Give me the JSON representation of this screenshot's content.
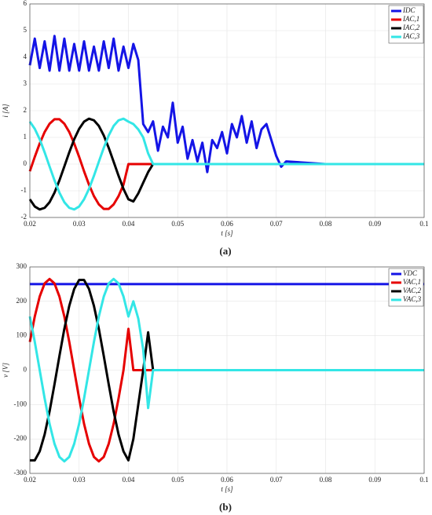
{
  "chart_data": [
    {
      "type": "line",
      "caption": "(a)",
      "xlabel": "t  [s]",
      "ylabel": "i  [A]",
      "x": [
        0.02,
        0.021,
        0.022,
        0.023,
        0.024,
        0.025,
        0.026,
        0.027,
        0.028,
        0.029,
        0.03,
        0.031,
        0.032,
        0.033,
        0.034,
        0.035,
        0.036,
        0.037,
        0.038,
        0.039,
        0.04,
        0.041,
        0.042,
        0.043,
        0.044,
        0.045,
        0.046,
        0.047,
        0.048,
        0.049,
        0.05,
        0.051,
        0.052,
        0.053,
        0.054,
        0.055,
        0.056,
        0.057,
        0.058,
        0.059,
        0.06,
        0.061,
        0.062,
        0.063,
        0.064,
        0.065,
        0.066,
        0.067,
        0.068,
        0.069,
        0.07,
        0.071,
        0.072,
        0.08,
        0.09,
        0.1
      ],
      "series": [
        {
          "name": "IDC",
          "color": "#1414e6",
          "values": [
            3.7,
            4.7,
            3.6,
            4.6,
            3.5,
            4.8,
            3.5,
            4.7,
            3.5,
            4.5,
            3.5,
            4.6,
            3.5,
            4.4,
            3.5,
            4.6,
            3.6,
            4.7,
            3.5,
            4.4,
            3.6,
            4.5,
            3.9,
            1.5,
            1.2,
            1.6,
            0.5,
            1.4,
            1.0,
            2.3,
            0.8,
            1.4,
            0.2,
            0.9,
            0.1,
            0.8,
            -0.3,
            0.9,
            0.6,
            1.2,
            0.4,
            1.5,
            1.0,
            1.8,
            0.8,
            1.6,
            0.6,
            1.3,
            1.5,
            0.9,
            0.3,
            -0.1,
            0.1,
            0,
            0,
            0
          ]
        },
        {
          "name": "IAC,1",
          "color": "#e60000",
          "values": [
            -0.27,
            0.27,
            0.77,
            1.2,
            1.51,
            1.68,
            1.68,
            1.51,
            1.2,
            0.77,
            0.27,
            -0.27,
            -0.77,
            -1.2,
            -1.51,
            -1.68,
            -1.68,
            -1.51,
            -1.2,
            -0.77,
            0,
            0,
            0,
            0,
            0,
            0,
            0,
            0,
            0,
            0,
            0,
            0,
            0,
            0,
            0,
            0,
            0,
            0,
            0,
            0,
            0,
            0,
            0,
            0,
            0,
            0,
            0,
            0,
            0,
            0,
            0,
            0,
            0,
            0,
            0,
            0
          ]
        },
        {
          "name": "IAC,2",
          "color": "#000000",
          "values": [
            -1.32,
            -1.59,
            -1.7,
            -1.64,
            -1.43,
            -1.07,
            -0.61,
            -0.09,
            0.44,
            0.93,
            1.32,
            1.59,
            1.7,
            1.64,
            1.43,
            1.07,
            0.61,
            0.09,
            -0.44,
            -0.93,
            -1.32,
            -1.4,
            -1.1,
            -0.7,
            -0.3,
            0,
            0,
            0,
            0,
            0,
            0,
            0,
            0,
            0,
            0,
            0,
            0,
            0,
            0,
            0,
            0,
            0,
            0,
            0,
            0,
            0,
            0,
            0,
            0,
            0,
            0,
            0,
            0,
            0,
            0,
            0
          ]
        },
        {
          "name": "IAC,3",
          "color": "#33e6e6",
          "values": [
            1.59,
            1.32,
            0.93,
            0.44,
            -0.09,
            -0.61,
            -1.07,
            -1.43,
            -1.64,
            -1.7,
            -1.59,
            -1.32,
            -0.93,
            -0.44,
            0.09,
            0.61,
            1.07,
            1.43,
            1.64,
            1.7,
            1.59,
            1.5,
            1.3,
            1.0,
            0.4,
            0,
            0,
            0,
            0,
            0,
            0,
            0,
            0,
            0,
            0,
            0,
            0,
            0,
            0,
            0,
            0,
            0,
            0,
            0,
            0,
            0,
            0,
            0,
            0,
            0,
            0,
            0,
            0,
            0,
            0,
            0
          ]
        }
      ],
      "xlim": [
        0.02,
        0.1
      ],
      "xticks": [
        0.02,
        0.03,
        0.04,
        0.05,
        0.06,
        0.07,
        0.08,
        0.09,
        0.1
      ],
      "ylim": [
        -2,
        6
      ],
      "yticks": [
        -2,
        -1,
        0,
        1,
        2,
        3,
        4,
        5,
        6
      ],
      "grid": true,
      "legend": "upper right"
    },
    {
      "type": "line",
      "caption": "(b)",
      "xlabel": "t  [s]",
      "ylabel": "v  [V]",
      "x": [
        0.02,
        0.021,
        0.022,
        0.023,
        0.024,
        0.025,
        0.026,
        0.027,
        0.028,
        0.029,
        0.03,
        0.031,
        0.032,
        0.033,
        0.034,
        0.035,
        0.036,
        0.037,
        0.038,
        0.039,
        0.04,
        0.041,
        0.042,
        0.043,
        0.044,
        0.045,
        0.05,
        0.06,
        0.07,
        0.08,
        0.09,
        0.1
      ],
      "series": [
        {
          "name": "VDC",
          "color": "#1414e6",
          "values": [
            250,
            250,
            250,
            250,
            250,
            250,
            250,
            250,
            250,
            250,
            250,
            250,
            250,
            250,
            250,
            250,
            250,
            250,
            250,
            250,
            250,
            250,
            250,
            250,
            250,
            250,
            250,
            250,
            250,
            250,
            250,
            250
          ]
        },
        {
          "name": "VAC,1",
          "color": "#e60000",
          "values": [
            82,
            156,
            214,
            252,
            265,
            252,
            214,
            156,
            82,
            0,
            -82,
            -156,
            -214,
            -252,
            -265,
            -252,
            -214,
            -156,
            -82,
            0,
            120,
            0,
            0,
            0,
            0,
            0,
            0,
            0,
            0,
            0,
            0,
            0
          ]
        },
        {
          "name": "VAC,2",
          "color": "#000000",
          "values": [
            -262,
            -262,
            -236,
            -187,
            -120,
            -41,
            41,
            120,
            187,
            236,
            262,
            262,
            236,
            187,
            120,
            41,
            -41,
            -120,
            -187,
            -236,
            -262,
            -200,
            -100,
            0,
            110,
            0,
            0,
            0,
            0,
            0,
            0,
            0
          ]
        },
        {
          "name": "VAC,3",
          "color": "#33e6e6",
          "values": [
            156,
            82,
            0,
            -82,
            -156,
            -214,
            -252,
            -265,
            -252,
            -214,
            -156,
            -82,
            0,
            82,
            156,
            214,
            252,
            265,
            252,
            214,
            156,
            200,
            150,
            60,
            -110,
            0,
            0,
            0,
            0,
            0,
            0,
            0
          ]
        }
      ],
      "xlim": [
        0.02,
        0.1
      ],
      "xticks": [
        0.02,
        0.03,
        0.04,
        0.05,
        0.06,
        0.07,
        0.08,
        0.09,
        0.1
      ],
      "ylim": [
        -300,
        300
      ],
      "yticks": [
        -300,
        -200,
        -100,
        0,
        100,
        200,
        300
      ],
      "grid": true,
      "legend": "upper right"
    }
  ]
}
